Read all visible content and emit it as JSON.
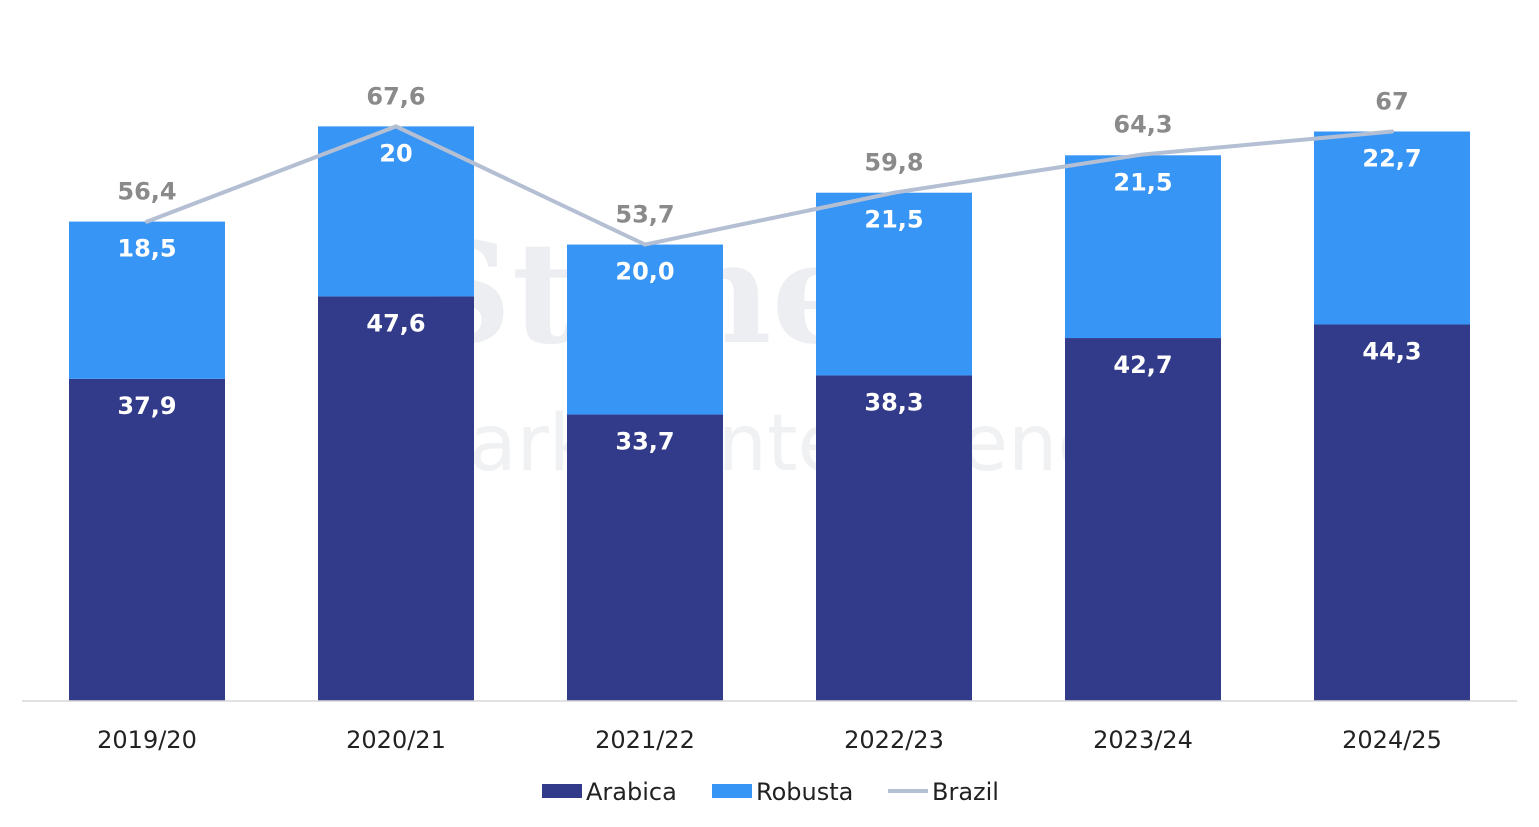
{
  "watermark": {
    "logo": "StoneX",
    "subtitle": "Market Intelligence"
  },
  "chart_data": {
    "type": "bar",
    "stacked": true,
    "categories": [
      "2019/20",
      "2020/21",
      "2021/22",
      "2022/23",
      "2023/24",
      "2024/25"
    ],
    "series": [
      {
        "name": "Arabica",
        "kind": "bar",
        "color": "#323a8a",
        "values": [
          37.9,
          47.6,
          33.7,
          38.3,
          42.7,
          44.3
        ],
        "labels": [
          "37,9",
          "47,6",
          "33,7",
          "38,3",
          "42,7",
          "44,3"
        ]
      },
      {
        "name": "Robusta",
        "kind": "bar",
        "color": "#3795f5",
        "values": [
          18.5,
          20,
          20.0,
          21.5,
          21.5,
          22.7
        ],
        "labels": [
          "18,5",
          "20",
          "20,0",
          "21,5",
          "21,5",
          "22,7"
        ]
      },
      {
        "name": "Brazil",
        "kind": "line",
        "color": "#b4bfd3",
        "values": [
          56.4,
          67.6,
          53.7,
          59.8,
          64.3,
          67
        ],
        "labels": [
          "56,4",
          "67,6",
          "53,7",
          "59,8",
          "64,3",
          "67"
        ]
      }
    ],
    "ylim": [
      0,
      75
    ],
    "grid": false,
    "legend_position": "bottom-center",
    "title": "",
    "xlabel": "",
    "ylabel": ""
  }
}
